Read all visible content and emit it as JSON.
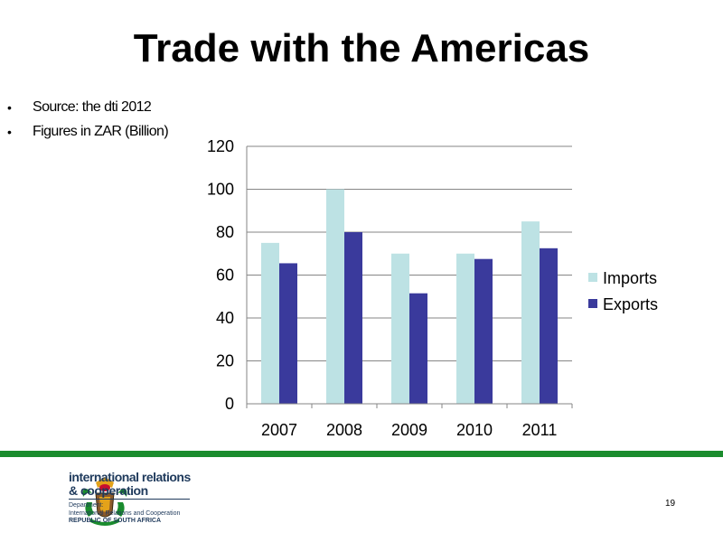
{
  "slide": {
    "title": "Trade with the Americas",
    "bullets": [
      "Source: the dti 2012",
      "Figures in ZAR (Billion)"
    ],
    "page_number": "19"
  },
  "footer": {
    "org_line1": "international relations",
    "org_line2": "& cooperation",
    "dept_label": "Department:",
    "dept_name": "International Relations and Cooperation",
    "country": "REPUBLIC OF SOUTH AFRICA",
    "bar_color": "#1b8c2e",
    "logo_icon": "coat-of-arms-icon"
  },
  "chart_data": {
    "type": "bar",
    "categories": [
      "2007",
      "2008",
      "2009",
      "2010",
      "2011"
    ],
    "series": [
      {
        "name": "Imports",
        "values": [
          75,
          100,
          70,
          70,
          85
        ],
        "color": "#bde2e4"
      },
      {
        "name": "Exports",
        "values": [
          65.5,
          80,
          51.5,
          67.5,
          72.5
        ],
        "color": "#3a3a9c"
      }
    ],
    "ylim": [
      0,
      120
    ],
    "yticks": [
      "0",
      "20",
      "40",
      "60",
      "80",
      "100",
      "120"
    ],
    "grid": true,
    "legend_position": "right",
    "title": "",
    "xlabel": "",
    "ylabel": ""
  }
}
